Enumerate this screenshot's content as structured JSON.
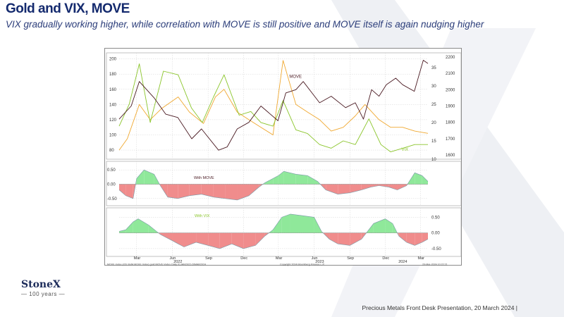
{
  "header": {
    "title": "Gold and VIX, MOVE",
    "subtitle": "VIX gradually working higher, while correlation with MOVE is still positive and MOVE itself is again nudging higher"
  },
  "branding": {
    "logo_name": "StoneX",
    "logo_sub": "— 100 years —"
  },
  "footer": {
    "text": "Precious Metals Front Desk Presentation, 20 March 2024 |"
  },
  "colors": {
    "gold": "#4a1a22",
    "vix": "#8ac52a",
    "move": "#f0a830",
    "positive_fill": "#8fe89a",
    "negative_fill": "#f08c8c",
    "title": "#142a6e"
  },
  "chart_data": [
    {
      "type": "line",
      "panel": "top",
      "left_axis_ticks": [
        "80",
        "100",
        "120",
        "140",
        "160",
        "180",
        "200"
      ],
      "left_axis_range": [
        68,
        208
      ],
      "right_axis_1_ticks": [
        "10",
        "15",
        "20",
        "25",
        "30",
        "35"
      ],
      "right_axis_1_range": [
        10,
        39
      ],
      "right_axis_2_ticks": [
        "1600",
        "1700",
        "1800",
        "1900",
        "2000",
        "2100",
        "2200"
      ],
      "right_axis_2_range": [
        1575,
        2225
      ],
      "annotations": [
        "MOVE",
        "VIX"
      ],
      "x_range": [
        "2022-01-15",
        "2024-03-20"
      ],
      "series": [
        {
          "name": "MOVE",
          "axis": "left",
          "x": [
            "2022-01-15",
            "2022-02-05",
            "2022-03-08",
            "2022-04-05",
            "2022-05-05",
            "2022-06-16",
            "2022-07-15",
            "2022-08-20",
            "2022-09-20",
            "2022-10-12",
            "2022-11-15",
            "2022-12-15",
            "2023-01-15",
            "2023-02-15",
            "2023-03-13",
            "2023-04-15",
            "2023-05-15",
            "2023-06-15",
            "2023-07-15",
            "2023-08-15",
            "2023-09-15",
            "2023-10-10",
            "2023-11-15",
            "2023-12-15",
            "2024-01-15",
            "2024-02-15",
            "2024-03-20"
          ],
          "values": [
            80,
            95,
            140,
            120,
            135,
            150,
            130,
            115,
            150,
            160,
            130,
            120,
            110,
            100,
            198,
            140,
            130,
            120,
            105,
            110,
            125,
            140,
            120,
            110,
            110,
            105,
            102
          ]
        },
        {
          "name": "VIX",
          "axis": "right1",
          "x": [
            "2022-01-15",
            "2022-02-10",
            "2022-03-08",
            "2022-04-05",
            "2022-05-09",
            "2022-06-16",
            "2022-07-20",
            "2022-08-17",
            "2022-09-15",
            "2022-10-12",
            "2022-11-20",
            "2022-12-20",
            "2023-01-15",
            "2023-02-15",
            "2023-03-13",
            "2023-04-15",
            "2023-05-15",
            "2023-06-15",
            "2023-07-15",
            "2023-08-15",
            "2023-09-15",
            "2023-10-20",
            "2023-11-20",
            "2023-12-15",
            "2024-01-15",
            "2024-02-15",
            "2024-03-20"
          ],
          "values": [
            19,
            25,
            36,
            20,
            34,
            33,
            24,
            20,
            27,
            33,
            22,
            23,
            20,
            19,
            26,
            18,
            17,
            14,
            13,
            15,
            14,
            21,
            14,
            12,
            13,
            14,
            14
          ]
        },
        {
          "name": "Gold",
          "axis": "right2",
          "x": [
            "2022-01-15",
            "2022-02-15",
            "2022-03-08",
            "2022-04-15",
            "2022-05-15",
            "2022-06-15",
            "2022-07-21",
            "2022-08-15",
            "2022-09-28",
            "2022-10-20",
            "2022-11-15",
            "2022-12-15",
            "2023-01-15",
            "2023-02-28",
            "2023-03-20",
            "2023-04-15",
            "2023-05-04",
            "2023-06-15",
            "2023-07-15",
            "2023-08-21",
            "2023-09-15",
            "2023-10-06",
            "2023-10-27",
            "2023-11-15",
            "2023-12-04",
            "2023-12-28",
            "2024-01-15",
            "2024-02-14",
            "2024-03-08",
            "2024-03-20"
          ],
          "values": [
            1820,
            1900,
            2050,
            1950,
            1850,
            1830,
            1700,
            1760,
            1630,
            1650,
            1760,
            1800,
            1900,
            1810,
            1980,
            2000,
            2050,
            1920,
            1960,
            1890,
            1920,
            1820,
            2000,
            1960,
            2030,
            2070,
            2030,
            1990,
            2180,
            2160
          ]
        }
      ]
    },
    {
      "type": "area",
      "panel": "middle",
      "annotation": "With MOVE",
      "y_ticks": [
        "0.50",
        "0.00",
        "-0.50"
      ],
      "y_range": [
        -0.75,
        0.8
      ],
      "x": [
        "2022-01-15",
        "2022-02-01",
        "2022-02-20",
        "2022-03-01",
        "2022-03-20",
        "2022-04-15",
        "2022-05-01",
        "2022-05-20",
        "2022-06-15",
        "2022-07-15",
        "2022-08-15",
        "2022-09-15",
        "2022-10-15",
        "2022-11-15",
        "2022-12-15",
        "2023-01-10",
        "2023-01-25",
        "2023-02-15",
        "2023-03-01",
        "2023-03-15",
        "2023-04-15",
        "2023-05-15",
        "2023-06-10",
        "2023-07-01",
        "2023-08-01",
        "2023-09-01",
        "2023-10-01",
        "2023-10-25",
        "2023-11-15",
        "2023-12-10",
        "2024-01-01",
        "2024-01-25",
        "2024-02-15",
        "2024-03-05",
        "2024-03-20"
      ],
      "values": [
        -0.2,
        -0.4,
        -0.5,
        0.2,
        0.5,
        0.35,
        -0.05,
        -0.45,
        -0.5,
        -0.4,
        -0.35,
        -0.45,
        -0.5,
        -0.55,
        -0.4,
        -0.1,
        0.05,
        0.2,
        0.3,
        0.45,
        0.35,
        0.3,
        0.1,
        -0.2,
        -0.35,
        -0.3,
        -0.2,
        -0.1,
        -0.05,
        -0.1,
        -0.2,
        -0.05,
        0.4,
        0.3,
        0.1
      ]
    },
    {
      "type": "area",
      "panel": "bottom",
      "annotation": "With VIX",
      "y_ticks": [
        "0.50",
        "0.00",
        "-0.50"
      ],
      "y_range": [
        -0.75,
        0.8
      ],
      "x": [
        "2022-01-15",
        "2022-02-01",
        "2022-02-20",
        "2022-03-05",
        "2022-04-01",
        "2022-05-01",
        "2022-06-01",
        "2022-07-01",
        "2022-08-01",
        "2022-09-01",
        "2022-10-01",
        "2022-11-01",
        "2022-12-01",
        "2023-01-01",
        "2023-01-25",
        "2023-02-15",
        "2023-03-10",
        "2023-04-01",
        "2023-05-01",
        "2023-06-01",
        "2023-06-20",
        "2023-07-10",
        "2023-08-01",
        "2023-09-01",
        "2023-10-01",
        "2023-11-01",
        "2023-12-01",
        "2023-12-20",
        "2024-01-05",
        "2024-01-25",
        "2024-02-15",
        "2024-03-05",
        "2024-03-20"
      ],
      "values": [
        0.05,
        0.1,
        0.35,
        0.45,
        0.25,
        -0.05,
        -0.25,
        -0.45,
        -0.3,
        -0.4,
        -0.5,
        -0.35,
        -0.5,
        -0.4,
        -0.1,
        0.1,
        0.5,
        0.6,
        0.55,
        0.5,
        0.05,
        -0.2,
        -0.35,
        -0.4,
        -0.2,
        0.3,
        0.45,
        0.3,
        -0.1,
        -0.3,
        -0.4,
        -0.3,
        -0.2
      ]
    }
  ],
  "x_axis": {
    "labels": [
      "Mar",
      "Jun",
      "Sep",
      "Dec",
      "Mar",
      "Jun",
      "Sep",
      "Dec",
      "Mar"
    ],
    "label_dates": [
      "2022-03-01",
      "2022-06-01",
      "2022-09-01",
      "2022-12-01",
      "2023-03-01",
      "2023-06-01",
      "2023-09-01",
      "2023-12-01",
      "2024-03-01"
    ],
    "years": [
      "2022",
      "2023",
      "2024"
    ],
    "year_dates": [
      "2022-06-15",
      "2023-06-15",
      "2024-01-15"
    ]
  },
  "source_strip": {
    "left": "MOVE Index (ICE BofA MOVE Index)  gold MOVE Vvdex  Daily 01JAN2022-20MAR2024",
    "center": "Copyright 2024 Bloomberg Finance L.P.",
    "right": "20-Mar-2024 10:22:21"
  }
}
